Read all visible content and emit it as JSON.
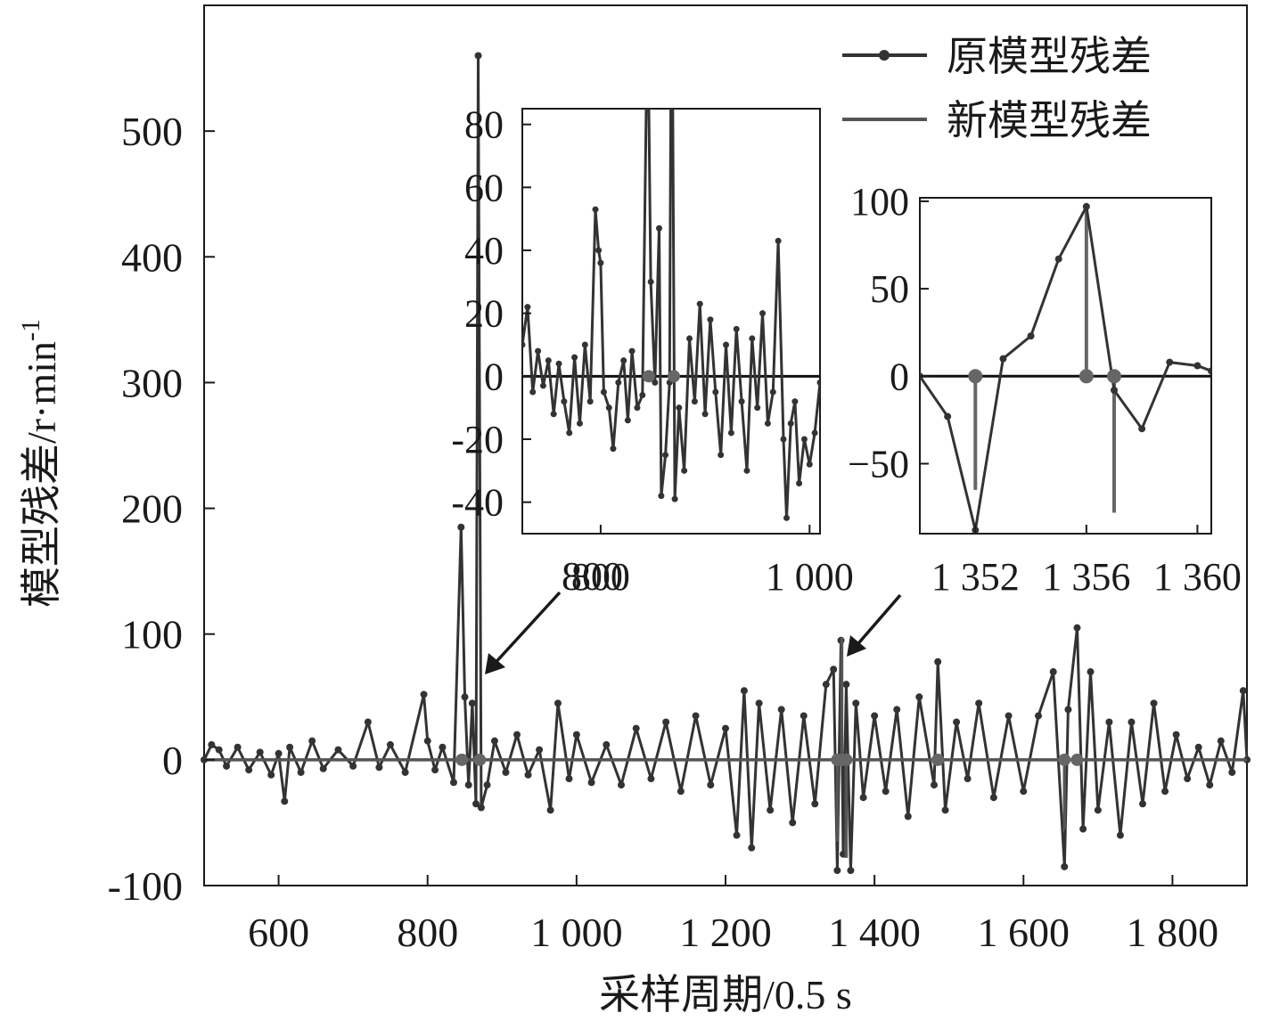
{
  "chart_data": [
    {
      "type": "line",
      "role": "main",
      "xlabel": "采样周期/0.5 s",
      "ylabel": "模型残差/r·min",
      "ylabel_sup": "-1",
      "xlim": [
        500,
        1900
      ],
      "ylim": [
        -100,
        600
      ],
      "xticks": [
        600,
        800,
        1000,
        1200,
        1400,
        1600,
        1800
      ],
      "xtick_labels": [
        "600",
        "800",
        "1 000",
        "1 200",
        "1 400",
        "1 600",
        "1 800"
      ],
      "yticks": [
        -100,
        0,
        100,
        200,
        300,
        400,
        500
      ],
      "ytick_labels": [
        "-100",
        "0",
        "100",
        "200",
        "300",
        "400",
        "500"
      ],
      "legend_position": "top-right",
      "series": [
        {
          "name": "原模型残差",
          "color": "#333333",
          "marker": "dot",
          "points": [
            [
              500,
              0
            ],
            [
              510,
              12
            ],
            [
              520,
              8
            ],
            [
              530,
              -5
            ],
            [
              545,
              10
            ],
            [
              560,
              -8
            ],
            [
              575,
              6
            ],
            [
              590,
              -12
            ],
            [
              600,
              5
            ],
            [
              608,
              -33
            ],
            [
              615,
              10
            ],
            [
              630,
              -10
            ],
            [
              645,
              15
            ],
            [
              660,
              -7
            ],
            [
              680,
              8
            ],
            [
              700,
              -5
            ],
            [
              720,
              30
            ],
            [
              735,
              -6
            ],
            [
              750,
              12
            ],
            [
              770,
              -10
            ],
            [
              795,
              52
            ],
            [
              800,
              15
            ],
            [
              810,
              -8
            ],
            [
              820,
              10
            ],
            [
              835,
              -18
            ],
            [
              845,
              185
            ],
            [
              850,
              50
            ],
            [
              855,
              -20
            ],
            [
              860,
              45
            ],
            [
              865,
              -35
            ],
            [
              868,
              560
            ],
            [
              872,
              -38
            ],
            [
              880,
              -20
            ],
            [
              890,
              15
            ],
            [
              905,
              -10
            ],
            [
              920,
              20
            ],
            [
              935,
              -12
            ],
            [
              950,
              8
            ],
            [
              965,
              -40
            ],
            [
              975,
              45
            ],
            [
              990,
              -15
            ],
            [
              1000,
              20
            ],
            [
              1020,
              -18
            ],
            [
              1040,
              12
            ],
            [
              1060,
              -20
            ],
            [
              1080,
              25
            ],
            [
              1100,
              -15
            ],
            [
              1120,
              30
            ],
            [
              1140,
              -25
            ],
            [
              1160,
              35
            ],
            [
              1180,
              -20
            ],
            [
              1200,
              25
            ],
            [
              1215,
              -60
            ],
            [
              1225,
              55
            ],
            [
              1235,
              -70
            ],
            [
              1245,
              45
            ],
            [
              1260,
              -40
            ],
            [
              1275,
              40
            ],
            [
              1290,
              -50
            ],
            [
              1305,
              35
            ],
            [
              1320,
              -35
            ],
            [
              1335,
              60
            ],
            [
              1345,
              72
            ],
            [
              1350,
              -88
            ],
            [
              1355,
              95
            ],
            [
              1358,
              -75
            ],
            [
              1362,
              60
            ],
            [
              1368,
              -88
            ],
            [
              1375,
              45
            ],
            [
              1385,
              -30
            ],
            [
              1400,
              35
            ],
            [
              1415,
              -25
            ],
            [
              1430,
              40
            ],
            [
              1445,
              -45
            ],
            [
              1460,
              50
            ],
            [
              1480,
              -20
            ],
            [
              1485,
              78
            ],
            [
              1495,
              -40
            ],
            [
              1510,
              30
            ],
            [
              1525,
              -15
            ],
            [
              1540,
              45
            ],
            [
              1560,
              -30
            ],
            [
              1580,
              35
            ],
            [
              1600,
              -25
            ],
            [
              1620,
              35
            ],
            [
              1640,
              70
            ],
            [
              1655,
              -85
            ],
            [
              1660,
              40
            ],
            [
              1672,
              105
            ],
            [
              1680,
              -55
            ],
            [
              1690,
              70
            ],
            [
              1700,
              -40
            ],
            [
              1715,
              30
            ],
            [
              1730,
              -60
            ],
            [
              1745,
              30
            ],
            [
              1760,
              -35
            ],
            [
              1775,
              45
            ],
            [
              1790,
              -25
            ],
            [
              1805,
              20
            ],
            [
              1820,
              -15
            ],
            [
              1835,
              10
            ],
            [
              1850,
              -20
            ],
            [
              1865,
              15
            ],
            [
              1880,
              -10
            ],
            [
              1895,
              55
            ],
            [
              1900,
              0
            ]
          ]
        },
        {
          "name": "新模型残差",
          "color": "#555555",
          "marker": "dot",
          "points": [
            [
              500,
              0
            ],
            [
              846,
              0
            ],
            [
              846,
              0
            ],
            [
              870,
              0
            ],
            [
              1350,
              0
            ],
            [
              1350,
              -65
            ],
            [
              1350,
              0
            ],
            [
              1356,
              0
            ],
            [
              1356,
              97
            ],
            [
              1356,
              0
            ],
            [
              1362,
              0
            ],
            [
              1362,
              -78
            ],
            [
              1362,
              0
            ],
            [
              1485,
              0
            ],
            [
              1655,
              0
            ],
            [
              1655,
              -55
            ],
            [
              1655,
              0
            ],
            [
              1672,
              0
            ],
            [
              1900,
              0
            ]
          ]
        }
      ]
    },
    {
      "type": "line",
      "role": "inset-left",
      "xlim": [
        725,
        1010
      ],
      "ylim": [
        -50,
        85
      ],
      "xticks": [
        800,
        1000
      ],
      "xtick_labels": [
        "800",
        "1 000"
      ],
      "yticks": [
        -40,
        -20,
        0,
        20,
        40,
        60,
        80
      ],
      "ytick_labels": [
        "-40",
        "-20",
        "0",
        "20",
        "40",
        "60",
        "80"
      ],
      "series": [
        {
          "name": "原模型残差",
          "points": [
            [
              725,
              10
            ],
            [
              730,
              22
            ],
            [
              735,
              -5
            ],
            [
              740,
              8
            ],
            [
              745,
              -3
            ],
            [
              750,
              5
            ],
            [
              755,
              -12
            ],
            [
              760,
              4
            ],
            [
              765,
              -8
            ],
            [
              770,
              -18
            ],
            [
              775,
              6
            ],
            [
              780,
              -15
            ],
            [
              785,
              10
            ],
            [
              790,
              -8
            ],
            [
              795,
              53
            ],
            [
              798,
              40
            ],
            [
              800,
              36
            ],
            [
              803,
              -5
            ],
            [
              808,
              -10
            ],
            [
              812,
              -23
            ],
            [
              817,
              -2
            ],
            [
              822,
              5
            ],
            [
              826,
              -14
            ],
            [
              830,
              8
            ],
            [
              835,
              -10
            ],
            [
              840,
              -6
            ],
            [
              845,
              120
            ],
            [
              848,
              30
            ],
            [
              852,
              -2
            ],
            [
              856,
              47
            ],
            [
              858,
              -38
            ],
            [
              862,
              -25
            ],
            [
              866,
              -2
            ],
            [
              868,
              150
            ],
            [
              871,
              -39
            ],
            [
              875,
              -10
            ],
            [
              880,
              -30
            ],
            [
              885,
              12
            ],
            [
              890,
              -8
            ],
            [
              895,
              23
            ],
            [
              900,
              -12
            ],
            [
              905,
              18
            ],
            [
              910,
              -5
            ],
            [
              915,
              -25
            ],
            [
              920,
              10
            ],
            [
              925,
              -18
            ],
            [
              930,
              15
            ],
            [
              935,
              -8
            ],
            [
              940,
              -30
            ],
            [
              945,
              12
            ],
            [
              950,
              -10
            ],
            [
              955,
              20
            ],
            [
              960,
              -15
            ],
            [
              965,
              -5
            ],
            [
              970,
              43
            ],
            [
              975,
              -20
            ],
            [
              978,
              -45
            ],
            [
              982,
              -15
            ],
            [
              986,
              -8
            ],
            [
              990,
              -34
            ],
            [
              995,
              -20
            ],
            [
              1000,
              -28
            ],
            [
              1005,
              -18
            ],
            [
              1010,
              -2
            ]
          ]
        },
        {
          "name": "新模型残差",
          "points": [
            [
              725,
              0
            ],
            [
              846,
              0
            ],
            [
              870,
              0
            ],
            [
              1010,
              0
            ]
          ]
        }
      ]
    },
    {
      "type": "line",
      "role": "inset-right",
      "xlim": [
        1350,
        1360.5
      ],
      "ylim": [
        -90,
        102
      ],
      "xticks": [
        1352,
        1356,
        1360
      ],
      "xtick_labels": [
        "1 352",
        "1 356",
        "1 360"
      ],
      "yticks": [
        -50,
        0,
        50,
        100
      ],
      "ytick_labels": [
        "−50",
        "0",
        "50",
        "100"
      ],
      "series": [
        {
          "name": "原模型残差",
          "points": [
            [
              1350,
              0
            ],
            [
              1351,
              -23
            ],
            [
              1352,
              -88
            ],
            [
              1353,
              10
            ],
            [
              1354,
              23
            ],
            [
              1355,
              67
            ],
            [
              1356,
              97
            ],
            [
              1357,
              -8
            ],
            [
              1358,
              -30
            ],
            [
              1359,
              8
            ],
            [
              1360,
              6
            ],
            [
              1360.5,
              3
            ]
          ]
        },
        {
          "name": "新模型残差",
          "stems": [
            [
              1352,
              -65
            ],
            [
              1356,
              97
            ],
            [
              1357,
              -78
            ]
          ],
          "markers_at_zero": [
            1352,
            1356,
            1357
          ]
        }
      ]
    }
  ],
  "annotations": {
    "arrow1_label": "800",
    "arrow2_label": "1 352",
    "arrow1_target_x": 870,
    "arrow2_target_x": 1355
  }
}
